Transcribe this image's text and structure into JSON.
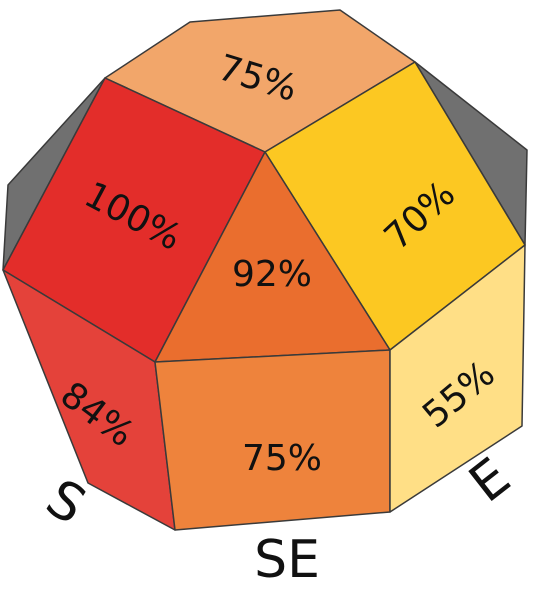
{
  "faces": [
    {
      "id": "top",
      "label": "75%",
      "color": "#F2A66A"
    },
    {
      "id": "upper-left",
      "label": "100%",
      "color": "#E32D2A"
    },
    {
      "id": "upper-right",
      "label": "70%",
      "color": "#FCC822"
    },
    {
      "id": "center",
      "label": "92%",
      "color": "#EA6E2E"
    },
    {
      "id": "lower-left",
      "label": "84%",
      "color": "#E4423A"
    },
    {
      "id": "lower-center",
      "label": "75%",
      "color": "#EE833C"
    },
    {
      "id": "lower-right",
      "label": "55%",
      "color": "#FFDF86"
    },
    {
      "id": "side-left",
      "label": "",
      "color": "#707070"
    },
    {
      "id": "side-right",
      "label": "",
      "color": "#707070"
    }
  ],
  "directions": {
    "south": "S",
    "southeast": "SE",
    "east": "E"
  }
}
